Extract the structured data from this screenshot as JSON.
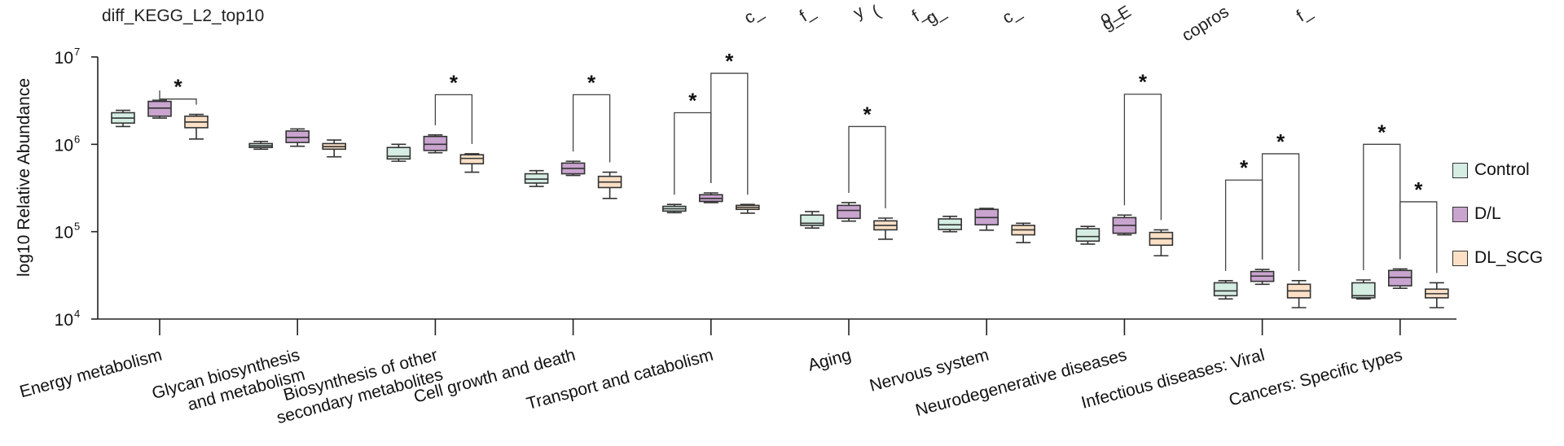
{
  "chart_data": {
    "type": "box",
    "title": "diff_KEGG_L2_top10",
    "ylabel": "log10 Relative Abundance",
    "yscale": "log",
    "ylim": [
      10000,
      10000000
    ],
    "yticks": [
      {
        "value": 10000,
        "base": "10",
        "exp": "4"
      },
      {
        "value": 100000,
        "base": "10",
        "exp": "5"
      },
      {
        "value": 1000000,
        "base": "10",
        "exp": "6"
      },
      {
        "value": 10000000,
        "base": "10",
        "exp": "7"
      }
    ],
    "categories": [
      [
        "Energy metabolism"
      ],
      [
        "Glycan biosynthesis",
        "and metabolism"
      ],
      [
        "Biosynthesis of other",
        "secondary metabolites"
      ],
      [
        "Cell growth and death"
      ],
      [
        "Transport and catabolism"
      ],
      [
        "Aging"
      ],
      [
        "Nervous system"
      ],
      [
        "Neurodegenerative diseases"
      ],
      [
        "Infectious diseases: Viral"
      ],
      [
        "Cancers: Specific types"
      ]
    ],
    "legend_position": "right",
    "series": [
      {
        "name": "Control",
        "color": "#d5ede3",
        "boxes": [
          {
            "min": 1600000,
            "q1": 1750000,
            "median": 2000000,
            "q3": 2300000,
            "max": 2450000
          },
          {
            "min": 880000,
            "q1": 920000,
            "median": 960000,
            "q3": 1020000,
            "max": 1080000
          },
          {
            "min": 640000,
            "q1": 680000,
            "median": 730000,
            "q3": 920000,
            "max": 1000000
          },
          {
            "min": 330000,
            "q1": 360000,
            "median": 400000,
            "q3": 460000,
            "max": 500000
          },
          {
            "min": 165000,
            "q1": 172000,
            "median": 183000,
            "q3": 195000,
            "max": 205000
          },
          {
            "min": 110000,
            "q1": 118000,
            "median": 125000,
            "q3": 155000,
            "max": 170000
          },
          {
            "min": 100000,
            "q1": 106000,
            "median": 120000,
            "q3": 140000,
            "max": 150000
          },
          {
            "min": 72000,
            "q1": 78000,
            "median": 88000,
            "q3": 108000,
            "max": 115000
          },
          {
            "min": 17000,
            "q1": 18500,
            "median": 21000,
            "q3": 26000,
            "max": 27500
          },
          {
            "min": 17000,
            "q1": 17500,
            "median": 18500,
            "q3": 26000,
            "max": 28000
          }
        ]
      },
      {
        "name": "D/L",
        "color": "#c9a4cf",
        "boxes": [
          {
            "min": 2000000,
            "q1": 2100000,
            "median": 2600000,
            "q3": 3100000,
            "max": 3200000
          },
          {
            "min": 950000,
            "q1": 1050000,
            "median": 1200000,
            "q3": 1420000,
            "max": 1500000
          },
          {
            "min": 800000,
            "q1": 850000,
            "median": 1000000,
            "q3": 1230000,
            "max": 1280000
          },
          {
            "min": 440000,
            "q1": 460000,
            "median": 530000,
            "q3": 610000,
            "max": 640000
          },
          {
            "min": 215000,
            "q1": 222000,
            "median": 240000,
            "q3": 265000,
            "max": 278000
          },
          {
            "min": 132000,
            "q1": 142000,
            "median": 175000,
            "q3": 200000,
            "max": 215000
          },
          {
            "min": 104000,
            "q1": 120000,
            "median": 145000,
            "q3": 180000,
            "max": 185000
          },
          {
            "min": 92000,
            "q1": 96000,
            "median": 118000,
            "q3": 145000,
            "max": 155000
          },
          {
            "min": 25000,
            "q1": 27000,
            "median": 31000,
            "q3": 35000,
            "max": 37000
          },
          {
            "min": 22500,
            "q1": 24000,
            "median": 30000,
            "q3": 36000,
            "max": 37500
          }
        ]
      },
      {
        "name": "DL_SCG",
        "color": "#fbe0c6",
        "boxes": [
          {
            "min": 1150000,
            "q1": 1550000,
            "median": 1800000,
            "q3": 2100000,
            "max": 2200000
          },
          {
            "min": 720000,
            "q1": 880000,
            "median": 940000,
            "q3": 1020000,
            "max": 1120000
          },
          {
            "min": 480000,
            "q1": 600000,
            "median": 690000,
            "q3": 760000,
            "max": 780000
          },
          {
            "min": 240000,
            "q1": 320000,
            "median": 370000,
            "q3": 430000,
            "max": 480000
          },
          {
            "min": 163000,
            "q1": 180000,
            "median": 190000,
            "q3": 200000,
            "max": 205000
          },
          {
            "min": 82000,
            "q1": 105000,
            "median": 118000,
            "q3": 133000,
            "max": 143000
          },
          {
            "min": 75000,
            "q1": 92000,
            "median": 105000,
            "q3": 118000,
            "max": 125000
          },
          {
            "min": 53000,
            "q1": 70000,
            "median": 83000,
            "q3": 98000,
            "max": 105000
          },
          {
            "min": 13500,
            "q1": 17500,
            "median": 21000,
            "q3": 25000,
            "max": 27500
          },
          {
            "min": 13500,
            "q1": 17500,
            "median": 19500,
            "q3": 22000,
            "max": 26000
          }
        ]
      }
    ],
    "significance": [
      {
        "category": 0,
        "from": 1,
        "to": 2,
        "level": 3300000,
        "label": "*"
      },
      {
        "category": 2,
        "from": 1,
        "to": 2,
        "level": 3700000,
        "label": "*"
      },
      {
        "category": 3,
        "from": 1,
        "to": 2,
        "level": 3700000,
        "label": "*"
      },
      {
        "category": 4,
        "from": 0,
        "to": 1,
        "level": 2300000,
        "label": "*"
      },
      {
        "category": 4,
        "from": 1,
        "to": 2,
        "level": 6500000,
        "label": "*"
      },
      {
        "category": 5,
        "from": 1,
        "to": 2,
        "level": 1600000,
        "label": "*"
      },
      {
        "category": 7,
        "from": 1,
        "to": 2,
        "level": 3750000,
        "label": "*"
      },
      {
        "category": 8,
        "from": 0,
        "to": 1,
        "level": 390000,
        "label": "*"
      },
      {
        "category": 8,
        "from": 1,
        "to": 2,
        "level": 780000,
        "label": "*"
      },
      {
        "category": 9,
        "from": 0,
        "to": 1,
        "level": 1000000,
        "label": "*"
      },
      {
        "category": 9,
        "from": 1,
        "to": 2,
        "level": 220000,
        "label": "*"
      }
    ],
    "cropped_top_text": [
      "c_",
      "f_",
      "y",
      "(",
      "f_",
      "g_",
      "c_",
      "o_",
      "g_E",
      "copros",
      "f_"
    ]
  }
}
